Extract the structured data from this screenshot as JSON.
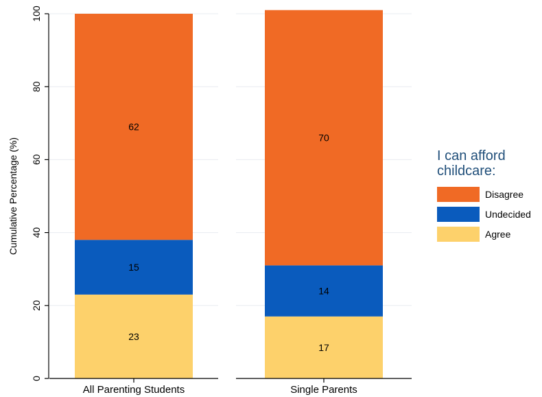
{
  "chart_data": {
    "type": "bar",
    "stacked": true,
    "categories": [
      "All Parenting Students",
      "Single Parents"
    ],
    "series": [
      {
        "name": "Agree",
        "values": [
          23,
          17
        ],
        "color": "#fdd16b"
      },
      {
        "name": "Undecided",
        "values": [
          15,
          14
        ],
        "color": "#0a5bbd"
      },
      {
        "name": "Disagree",
        "values": [
          62,
          70
        ],
        "color": "#f06a25"
      }
    ],
    "ylabel": "Cumulative Percentage (%)",
    "xlabel": "",
    "ylim": [
      0,
      100
    ],
    "yticks": [
      0,
      20,
      40,
      60,
      80,
      100
    ],
    "grid": true,
    "legend": {
      "title": "I can afford\nchildcare:",
      "placement": "right",
      "order": [
        "Disagree",
        "Undecided",
        "Agree"
      ]
    }
  }
}
